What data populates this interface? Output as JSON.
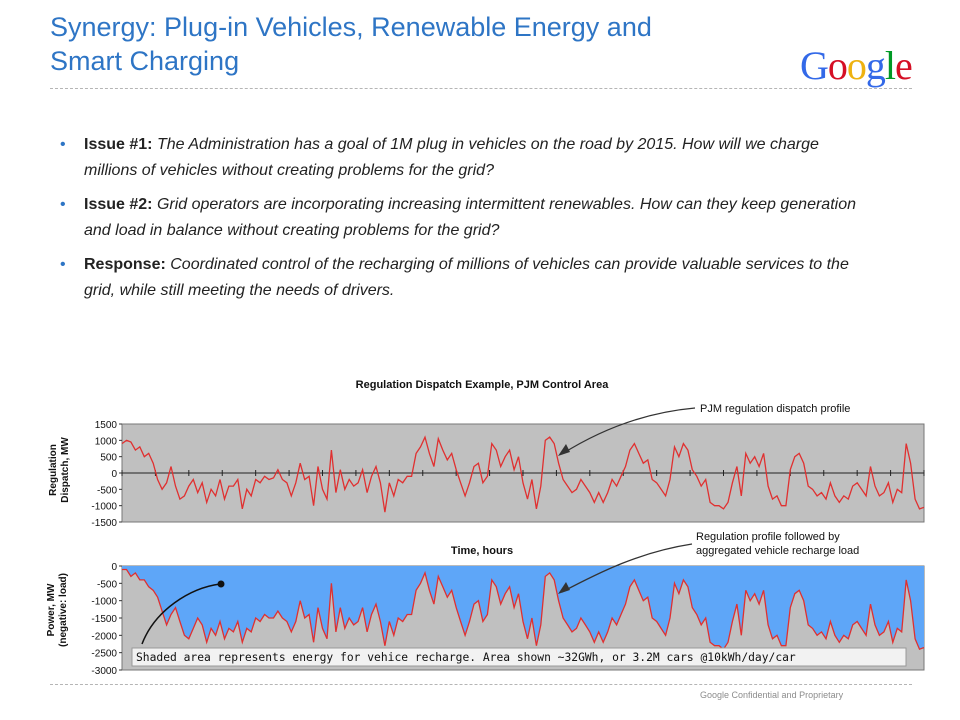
{
  "slide": {
    "title_line1": "Synergy: Plug-in Vehicles, Renewable Energy and",
    "title_line2": "Smart Charging",
    "logo": {
      "letters": [
        {
          "ch": "G",
          "color": "#3369e8"
        },
        {
          "ch": "o",
          "color": "#d50f25"
        },
        {
          "ch": "o",
          "color": "#eeb211"
        },
        {
          "ch": "g",
          "color": "#3369e8"
        },
        {
          "ch": "l",
          "color": "#009925"
        },
        {
          "ch": "e",
          "color": "#d50f25"
        }
      ]
    },
    "footer": "Google Confidential and Proprietary"
  },
  "bullets": [
    {
      "label": "Issue #1:",
      "text": "The Administration has a goal of 1M plug in vehicles on the road by 2015. How will we charge millions of vehicles without creating problems for the grid?"
    },
    {
      "label": "Issue #2:",
      "text": "Grid operators are incorporating increasing intermittent renewables. How can they keep generation and load in balance without creating problems for the grid?"
    },
    {
      "label": "Response:",
      "text": "Coordinated control of the recharging of millions of vehicles can provide valuable services to the grid, while still meeting the needs of drivers."
    }
  ],
  "colors": {
    "title_blue": "#2e75c5",
    "plot_bg": "#c0c0c0",
    "series_red": "#e03030",
    "shade_blue": "#5ea6f8"
  },
  "chart_data": [
    {
      "type": "line",
      "title": "Regulation Dispatch Example, PJM Control Area",
      "xlabel": "Time, hours",
      "ylabel": "Regulation Dispatch, MW",
      "ylim": [
        -1500,
        1500
      ],
      "yticks": [
        "1500",
        "1000",
        "500",
        "0",
        "-500",
        "-1000",
        "-1500"
      ],
      "annotation": "PJM regulation dispatch profile",
      "series": [
        {
          "values": [
            900,
            1000,
            950,
            700,
            800,
            500,
            600,
            300,
            -200,
            -500,
            -300,
            200,
            -400,
            -800,
            -700,
            -400,
            -200,
            -600,
            -300,
            -900,
            -500,
            -700,
            -200,
            -800,
            -400,
            -400,
            -200,
            -1100,
            -500,
            -700,
            -200,
            -300,
            -100,
            -200,
            -150,
            100,
            -200,
            -300,
            -700,
            -300,
            300,
            -200,
            -100,
            -1000,
            200,
            -500,
            -800,
            700,
            -600,
            100,
            -500,
            -200,
            -400,
            -300,
            100,
            -600,
            -100,
            200,
            -300,
            -1200,
            -300,
            -700,
            -200,
            -300,
            -100,
            -100,
            600,
            800,
            1100,
            600,
            200,
            1050,
            700,
            400,
            600,
            100,
            -300,
            -700,
            -300,
            200,
            300,
            -300,
            -100,
            900,
            700,
            200,
            500,
            700,
            100,
            500,
            -300,
            -800,
            -200,
            -1100,
            -400,
            1000,
            1100,
            900,
            300,
            -200,
            -400,
            -600,
            -500,
            -200,
            -400,
            -600,
            -900,
            -600,
            -900,
            -600,
            -200,
            -400,
            -100,
            200,
            700,
            900,
            600,
            300,
            400,
            -200,
            -300,
            -500,
            -700,
            -200,
            800,
            500,
            900,
            700,
            100,
            -100,
            -400,
            -200,
            -900,
            -1000,
            -1000,
            -1100,
            -900,
            -300,
            200,
            -700,
            600,
            300,
            500,
            200,
            600,
            -400,
            -800,
            -700,
            -1000,
            -1000,
            100,
            500,
            600,
            300,
            -400,
            -500,
            -700,
            -600,
            -800,
            -300,
            -700,
            -900,
            -700,
            -800,
            -400,
            -300,
            -500,
            -700,
            200,
            -400,
            -700,
            -600,
            -300,
            -900,
            -500,
            -600,
            900,
            300,
            -800,
            -1100,
            -1050
          ]
        }
      ]
    },
    {
      "type": "area",
      "xlabel": "",
      "ylabel": "Power, MW (negative: load)",
      "ylim": [
        -3000,
        0
      ],
      "yticks": [
        "0",
        "-500",
        "-1000",
        "-1500",
        "-2000",
        "-2500",
        "-3000"
      ],
      "annotation": "Regulation profile followed by aggregated vehicle recharge load",
      "caption": "Shaded area represents energy for vehice recharge.  Area shown ~32GWh, or 3.2M cars @10kWh/day/car",
      "series": [
        {
          "values": [
            -100,
            -100,
            -300,
            -200,
            -400,
            -400,
            -600,
            -700,
            -900,
            -1300,
            -1700,
            -1400,
            -1200,
            -1600,
            -2000,
            -2100,
            -1800,
            -1500,
            -1700,
            -2200,
            -1800,
            -2000,
            -1600,
            -2100,
            -1800,
            -1900,
            -1600,
            -2200,
            -1800,
            -1900,
            -1500,
            -1600,
            -1400,
            -1500,
            -1500,
            -1300,
            -1500,
            -1600,
            -1900,
            -1600,
            -1000,
            -1500,
            -1400,
            -2200,
            -1200,
            -1800,
            -2100,
            -500,
            -1900,
            -1200,
            -1800,
            -1500,
            -1700,
            -1600,
            -1200,
            -1900,
            -1400,
            -1100,
            -1600,
            -2300,
            -1600,
            -2000,
            -1500,
            -1600,
            -1400,
            -1400,
            -700,
            -500,
            -200,
            -700,
            -1100,
            -300,
            -600,
            -900,
            -700,
            -1200,
            -1600,
            -2000,
            -1600,
            -1100,
            -1000,
            -1600,
            -1400,
            -400,
            -600,
            -1100,
            -800,
            -600,
            -1200,
            -800,
            -1600,
            -2100,
            -1500,
            -2300,
            -1700,
            -300,
            -200,
            -400,
            -1000,
            -1500,
            -1700,
            -1900,
            -1800,
            -1500,
            -1700,
            -1900,
            -2200,
            -1900,
            -2200,
            -1900,
            -1500,
            -1700,
            -1400,
            -1100,
            -600,
            -400,
            -700,
            -1000,
            -900,
            -1500,
            -1600,
            -1800,
            -2000,
            -1500,
            -500,
            -800,
            -400,
            -600,
            -1200,
            -1400,
            -1700,
            -1500,
            -2200,
            -2300,
            -2300,
            -2400,
            -2200,
            -1600,
            -1100,
            -2000,
            -700,
            -1000,
            -800,
            -1100,
            -700,
            -1700,
            -2100,
            -2000,
            -2300,
            -2300,
            -1200,
            -800,
            -700,
            -1000,
            -1700,
            -1800,
            -2000,
            -1900,
            -2100,
            -1600,
            -2000,
            -2200,
            -2000,
            -2100,
            -1700,
            -1600,
            -1800,
            -2000,
            -1100,
            -1700,
            -2000,
            -1900,
            -1600,
            -2200,
            -1800,
            -1900,
            -400,
            -1000,
            -2100,
            -2400,
            -2350
          ]
        }
      ]
    }
  ]
}
